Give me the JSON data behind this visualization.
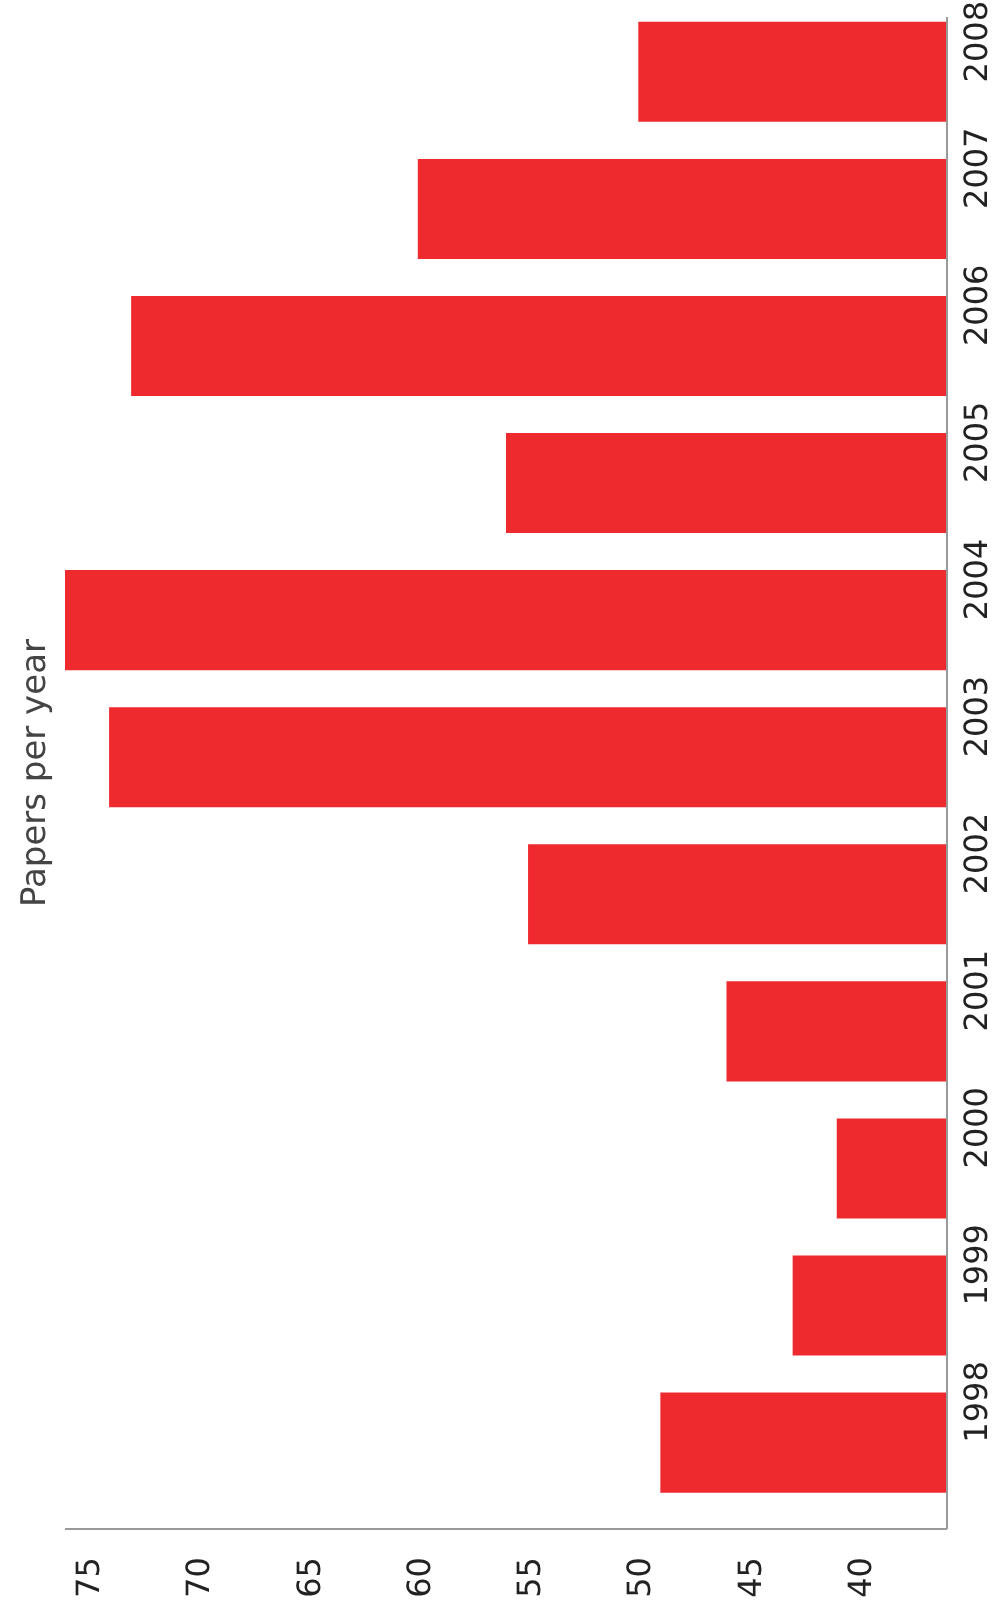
{
  "chart_data": {
    "type": "bar",
    "orientation": "horizontal",
    "title": "Papers per year",
    "categories": [
      "2008",
      "2007",
      "2006",
      "2005",
      "2004",
      "2003",
      "2002",
      "2001",
      "2000",
      "1999",
      "1998"
    ],
    "values": [
      50,
      60,
      73,
      56,
      76,
      74,
      55,
      46,
      41,
      43,
      49
    ],
    "color": "#ee2a2e",
    "xlim": [
      76,
      36
    ],
    "xticks": [
      75,
      70,
      65,
      60,
      55,
      50,
      45,
      40
    ],
    "grid": false
  }
}
